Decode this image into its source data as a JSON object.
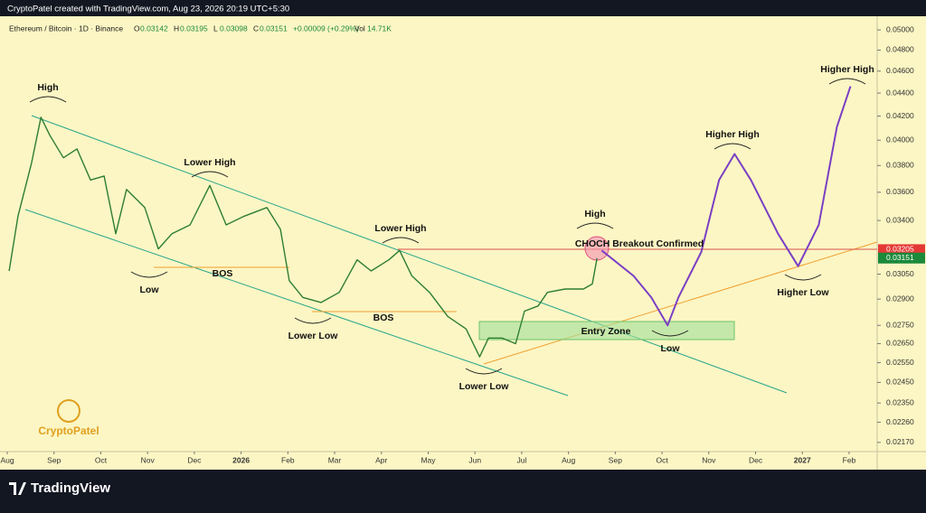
{
  "header": "CryptoPatel created with TradingView.com, Aug 23, 2026 20:19 UTC+5:30",
  "footer": "TradingView",
  "logo": "CryptoPatel",
  "legend": {
    "symbol": "Ethereum / Bitcoin · 1D · Binance",
    "fields": [
      {
        "key": "O",
        "value": "0.03142"
      },
      {
        "key": "H",
        "value": "0.03195"
      },
      {
        "key": "L",
        "value": "0.03098"
      },
      {
        "key": "C",
        "value": "0.03151"
      }
    ],
    "change": "+0.00009 (+0.29%)",
    "volume_key": "Vol",
    "volume": "14.71K"
  },
  "chart_data": {
    "type": "line",
    "log_scale": true,
    "grid": false,
    "xlim": [
      -0.155,
      18.6
    ],
    "xticks": [
      {
        "value": 0,
        "label": "Aug"
      },
      {
        "value": 1,
        "label": "Sep"
      },
      {
        "value": 2,
        "label": "Oct"
      },
      {
        "value": 3,
        "label": "Nov"
      },
      {
        "value": 4,
        "label": "Dec"
      },
      {
        "value": 5,
        "label": "2026"
      },
      {
        "value": 6,
        "label": "Feb"
      },
      {
        "value": 7,
        "label": "Mar"
      },
      {
        "value": 8,
        "label": "Apr"
      },
      {
        "value": 9,
        "label": "May"
      },
      {
        "value": 10,
        "label": "Jun"
      },
      {
        "value": 11,
        "label": "Jul"
      },
      {
        "value": 12,
        "label": "Aug"
      },
      {
        "value": 13,
        "label": "Sep"
      },
      {
        "value": 14,
        "label": "Oct"
      },
      {
        "value": 15,
        "label": "Nov"
      },
      {
        "value": 16,
        "label": "Dec"
      },
      {
        "value": 17,
        "label": "2027"
      },
      {
        "value": 18,
        "label": "Feb"
      }
    ],
    "ylim": [
      0.0213,
      0.0514
    ],
    "yticks": [
      {
        "value": 0.05,
        "label": "0.05000"
      },
      {
        "value": 0.048,
        "label": "0.04800"
      },
      {
        "value": 0.046,
        "label": "0.04600"
      },
      {
        "value": 0.044,
        "label": "0.04400"
      },
      {
        "value": 0.042,
        "label": "0.04200"
      },
      {
        "value": 0.04,
        "label": "0.04000"
      },
      {
        "value": 0.038,
        "label": "0.03800"
      },
      {
        "value": 0.036,
        "label": "0.03600"
      },
      {
        "value": 0.034,
        "label": "0.03400"
      },
      {
        "value": 0.0305,
        "label": "0.03050"
      },
      {
        "value": 0.029,
        "label": "0.02900"
      },
      {
        "value": 0.0275,
        "label": "0.02750"
      },
      {
        "value": 0.0265,
        "label": "0.02650"
      },
      {
        "value": 0.0255,
        "label": "0.02550"
      },
      {
        "value": 0.0245,
        "label": "0.02450"
      },
      {
        "value": 0.0235,
        "label": "0.02350"
      },
      {
        "value": 0.0226,
        "label": "0.02260"
      },
      {
        "value": 0.0217,
        "label": "0.02170"
      }
    ],
    "price_labels": [
      {
        "value": 0.03205,
        "color": "#e53935"
      },
      {
        "value": 0.03151,
        "color": "#1b8a3a"
      }
    ],
    "series": [
      {
        "color": "#2e7d32",
        "x": [
          0.04,
          0.23,
          0.52,
          0.72,
          0.91,
          1.2,
          1.49,
          1.78,
          2.07,
          2.32,
          2.55,
          2.94,
          3.23,
          3.52,
          3.91,
          4.33,
          4.68,
          5.07,
          5.55,
          5.84,
          6.03,
          6.32,
          6.71,
          7.1,
          7.48,
          7.78,
          8.16,
          8.39,
          8.65,
          9.03,
          9.42,
          9.81,
          10.1,
          10.29,
          10.58,
          10.87,
          11.06,
          11.35,
          11.55,
          11.93,
          12.32,
          12.51,
          12.61
        ],
        "values": [
          0.0307,
          0.0343,
          0.0382,
          0.0419,
          0.0404,
          0.0386,
          0.0393,
          0.0369,
          0.0372,
          0.0331,
          0.0362,
          0.0349,
          0.0321,
          0.0331,
          0.0337,
          0.0365,
          0.0337,
          0.0343,
          0.0349,
          0.0334,
          0.0301,
          0.0291,
          0.0288,
          0.0294,
          0.0314,
          0.0307,
          0.0314,
          0.032,
          0.0304,
          0.0294,
          0.028,
          0.0273,
          0.0258,
          0.0268,
          0.0268,
          0.0265,
          0.0283,
          0.0286,
          0.0294,
          0.0296,
          0.0296,
          0.0299,
          0.0315
        ]
      },
      {
        "color": "#7b3fc4",
        "x": [
          12.71,
          13.39,
          13.77,
          14.12,
          14.35,
          14.84,
          15.22,
          15.55,
          15.9,
          16.48,
          16.91,
          17.35,
          17.74,
          18.03
        ],
        "values": [
          0.032,
          0.0304,
          0.0291,
          0.0275,
          0.0291,
          0.0319,
          0.0369,
          0.0389,
          0.0369,
          0.0331,
          0.031,
          0.0337,
          0.0411,
          0.0446
        ]
      }
    ],
    "annotations": [
      "High",
      "Lower High",
      "Low",
      "BOS",
      "Lower Low",
      "BOS",
      "Lower High",
      "Lower Low",
      "Entry Zone",
      "High",
      "CHOCH Breakout Confirmed",
      "Low",
      "Higher High",
      "Higher Low",
      "Higher High"
    ]
  }
}
